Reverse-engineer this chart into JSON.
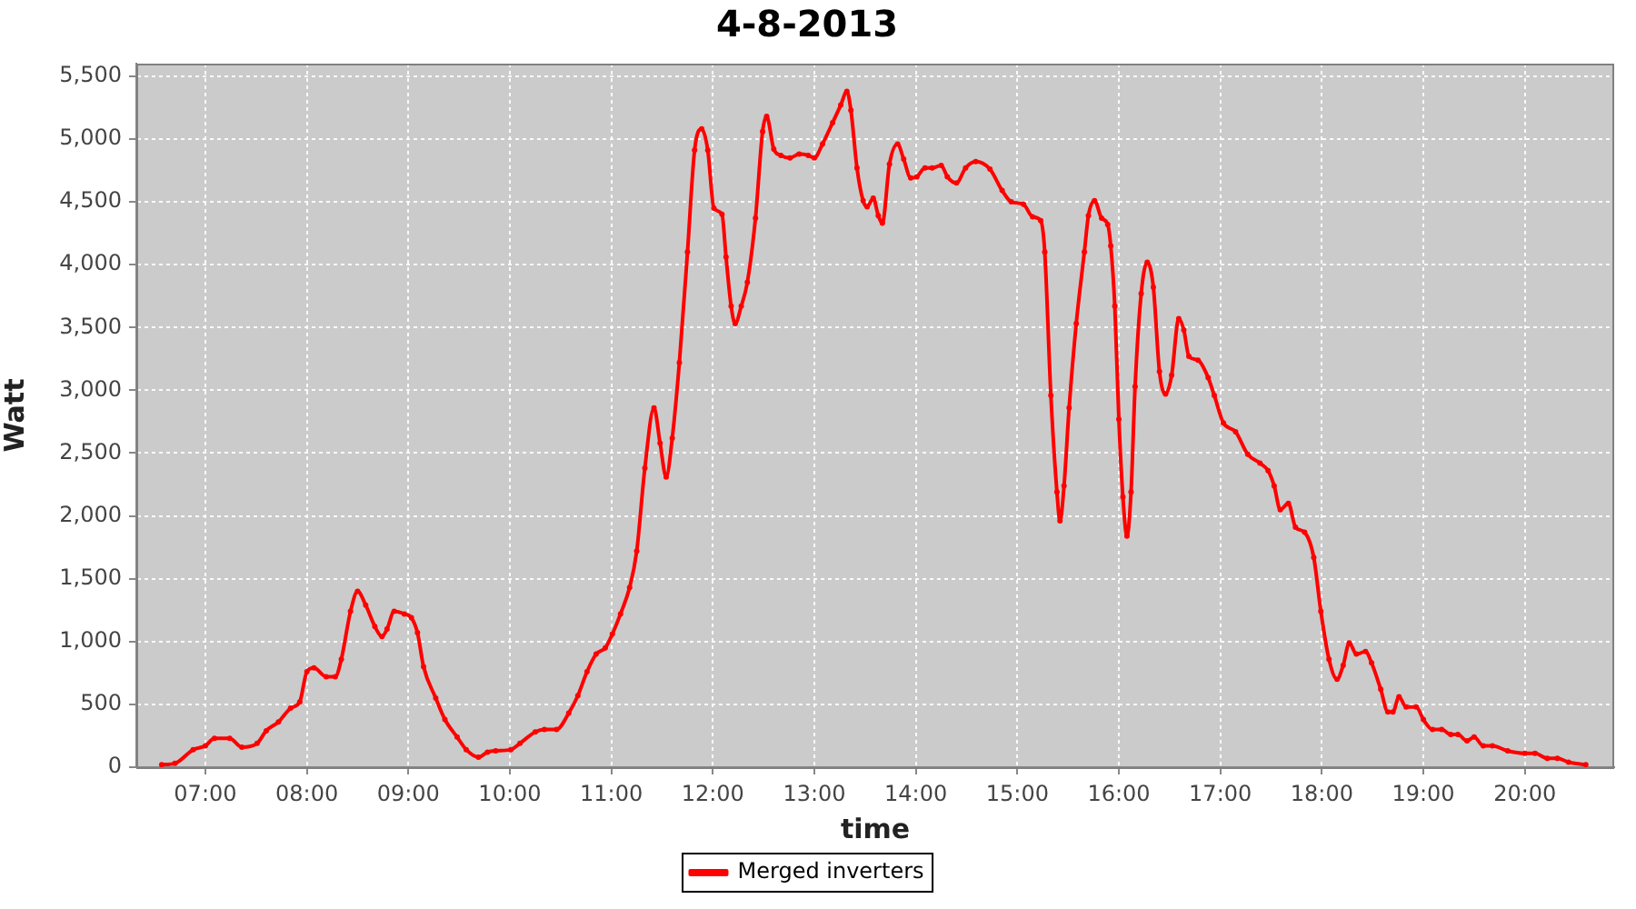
{
  "chart_data": {
    "type": "line",
    "title": "4-8-2013",
    "xlabel": "time",
    "ylabel": "Watt",
    "x": [
      6.57,
      6.7,
      6.88,
      7.0,
      7.09,
      7.24,
      7.36,
      7.51,
      7.6,
      7.72,
      7.84,
      7.93,
      8.0,
      8.07,
      8.19,
      8.28,
      8.34,
      8.43,
      8.5,
      8.58,
      8.67,
      8.74,
      8.79,
      8.86,
      8.96,
      9.03,
      9.09,
      9.15,
      9.27,
      9.36,
      9.48,
      9.57,
      9.69,
      9.78,
      9.86,
      10.01,
      10.1,
      10.25,
      10.34,
      10.46,
      10.58,
      10.67,
      10.76,
      10.85,
      10.94,
      11.01,
      11.09,
      11.18,
      11.25,
      11.33,
      11.42,
      11.48,
      11.54,
      11.6,
      11.67,
      11.75,
      11.82,
      11.89,
      11.95,
      12.01,
      12.09,
      12.13,
      12.18,
      12.22,
      12.28,
      12.34,
      12.42,
      12.49,
      12.53,
      12.6,
      12.67,
      12.76,
      12.85,
      12.94,
      13.0,
      13.08,
      13.18,
      13.26,
      13.32,
      13.36,
      13.42,
      13.48,
      13.52,
      13.58,
      13.63,
      13.67,
      13.74,
      13.82,
      13.88,
      13.95,
      14.01,
      14.09,
      14.16,
      14.25,
      14.31,
      14.4,
      14.49,
      14.59,
      14.73,
      14.85,
      14.94,
      15.06,
      15.15,
      15.23,
      15.27,
      15.33,
      15.39,
      15.42,
      15.46,
      15.51,
      15.58,
      15.66,
      15.7,
      15.76,
      15.83,
      15.89,
      15.92,
      15.96,
      16.0,
      16.04,
      16.08,
      16.12,
      16.16,
      16.22,
      16.28,
      16.34,
      16.4,
      16.46,
      16.52,
      16.59,
      16.64,
      16.69,
      16.78,
      16.88,
      16.94,
      17.03,
      17.15,
      17.27,
      17.39,
      17.47,
      17.53,
      17.59,
      17.67,
      17.74,
      17.83,
      17.92,
      17.99,
      18.07,
      18.15,
      18.21,
      18.27,
      18.34,
      18.43,
      18.49,
      18.58,
      18.65,
      18.7,
      18.76,
      18.83,
      18.93,
      19.0,
      19.09,
      19.18,
      19.27,
      19.34,
      19.43,
      19.5,
      19.59,
      19.68,
      19.83,
      20.0,
      20.1,
      20.22,
      20.32,
      20.43,
      20.6
    ],
    "series": [
      {
        "name": "Merged inverters",
        "color": "#ff0000",
        "values": [
          20,
          30,
          140,
          170,
          230,
          230,
          160,
          190,
          290,
          360,
          470,
          520,
          760,
          790,
          720,
          720,
          860,
          1240,
          1400,
          1290,
          1120,
          1040,
          1100,
          1240,
          1220,
          1190,
          1070,
          800,
          550,
          380,
          240,
          140,
          80,
          120,
          130,
          140,
          190,
          280,
          300,
          300,
          430,
          570,
          760,
          900,
          950,
          1060,
          1220,
          1430,
          1720,
          2380,
          2860,
          2580,
          2310,
          2620,
          3220,
          4100,
          4910,
          5080,
          4910,
          4450,
          4400,
          4060,
          3670,
          3530,
          3670,
          3860,
          4370,
          5060,
          5180,
          4920,
          4870,
          4850,
          4880,
          4870,
          4850,
          4960,
          5130,
          5270,
          5380,
          5230,
          4770,
          4510,
          4460,
          4530,
          4390,
          4330,
          4800,
          4960,
          4840,
          4690,
          4700,
          4770,
          4770,
          4790,
          4700,
          4650,
          4770,
          4820,
          4760,
          4590,
          4500,
          4480,
          4380,
          4350,
          4100,
          2960,
          2190,
          1960,
          2240,
          2860,
          3530,
          4100,
          4390,
          4510,
          4370,
          4320,
          4150,
          3670,
          2770,
          2150,
          1840,
          2190,
          3030,
          3770,
          4020,
          3820,
          3150,
          2970,
          3120,
          3570,
          3480,
          3270,
          3240,
          3100,
          2960,
          2740,
          2670,
          2490,
          2420,
          2360,
          2240,
          2050,
          2100,
          1910,
          1870,
          1670,
          1240,
          860,
          700,
          810,
          990,
          900,
          920,
          830,
          620,
          440,
          440,
          560,
          480,
          480,
          380,
          300,
          300,
          260,
          260,
          210,
          240,
          170,
          170,
          130,
          110,
          110,
          70,
          70,
          40,
          20
        ]
      }
    ],
    "xlim": [
      6.32,
      20.88
    ],
    "xticks": [
      {
        "value": 7,
        "label": "07:00"
      },
      {
        "value": 8,
        "label": "08:00"
      },
      {
        "value": 9,
        "label": "09:00"
      },
      {
        "value": 10,
        "label": "10:00"
      },
      {
        "value": 11,
        "label": "11:00"
      },
      {
        "value": 12,
        "label": "12:00"
      },
      {
        "value": 13,
        "label": "13:00"
      },
      {
        "value": 14,
        "label": "14:00"
      },
      {
        "value": 15,
        "label": "15:00"
      },
      {
        "value": 16,
        "label": "16:00"
      },
      {
        "value": 17,
        "label": "17:00"
      },
      {
        "value": 18,
        "label": "18:00"
      },
      {
        "value": 19,
        "label": "19:00"
      },
      {
        "value": 20,
        "label": "20:00"
      }
    ],
    "ylim": [
      0,
      5600
    ],
    "yticks": [
      0,
      500,
      {
        "value": 1000,
        "label": "1,000"
      },
      {
        "value": 1500,
        "label": "1,500"
      },
      {
        "value": 2000,
        "label": "2,000"
      },
      {
        "value": 2500,
        "label": "2,500"
      },
      {
        "value": 3000,
        "label": "3,000"
      },
      {
        "value": 3500,
        "label": "3,500"
      },
      {
        "value": 4000,
        "label": "4,000"
      },
      {
        "value": 4500,
        "label": "4,500"
      },
      {
        "value": 5000,
        "label": "5,000"
      },
      {
        "value": 5500,
        "label": "5,500"
      }
    ],
    "grid": true,
    "legend": "bottom",
    "marker": "circle",
    "line_style": "solid"
  }
}
